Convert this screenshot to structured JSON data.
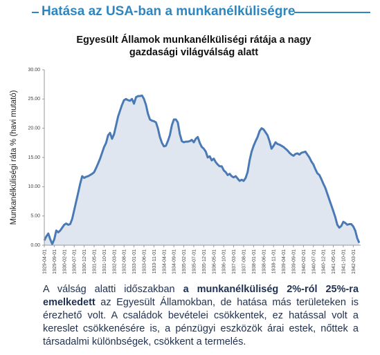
{
  "header": {
    "title": "Hatása az USA-ban a munkanélküliségre"
  },
  "chart_data": {
    "type": "area",
    "title": "Egyesült Államok munkanélküliségi rátája a nagy gazdasági világválság alatt",
    "y_label": "Munkanélküliségi ráta % (havi mutató)",
    "color": "#4a7ab5",
    "fill": "#dfe6ef",
    "categories": [
      "1929-04-01",
      null,
      null,
      null,
      null,
      "1929-09-01",
      null,
      null,
      null,
      null,
      "1930-02-01",
      null,
      null,
      null,
      null,
      "1930-07-01",
      null,
      null,
      null,
      null,
      "1930-12-01",
      null,
      null,
      null,
      null,
      "1931-05-01",
      null,
      null,
      null,
      null,
      "1931-10-01",
      null,
      null,
      null,
      null,
      "1932-03-01",
      null,
      null,
      null,
      null,
      "1932-08-01",
      null,
      null,
      null,
      null,
      "1933-01-01",
      null,
      null,
      null,
      null,
      "1933-06-01",
      null,
      null,
      null,
      null,
      "1933-11-01",
      null,
      null,
      null,
      null,
      "1934-04-01",
      null,
      null,
      null,
      null,
      "1934-09-01",
      null,
      null,
      null,
      null,
      "1935-02-01",
      null,
      null,
      null,
      null,
      "1935-07-01",
      null,
      null,
      null,
      null,
      "1935-12-01",
      null,
      null,
      null,
      null,
      "1936-05-01",
      null,
      null,
      null,
      null,
      "1936-10-01",
      null,
      null,
      null,
      null,
      "1937-03-01",
      null,
      null,
      null,
      null,
      "1937-08-01",
      null,
      null,
      null,
      null,
      "1938-01-01",
      null,
      null,
      null,
      null,
      "1938-06-01",
      null,
      null,
      null,
      null,
      "1938-11-01",
      null,
      null,
      null,
      null,
      "1939-04-01",
      null,
      null,
      null,
      null,
      "1939-09-01",
      null,
      null,
      null,
      null,
      "1940-02-01",
      null,
      null,
      null,
      null,
      "1940-07-01",
      null,
      null,
      null,
      null,
      "1940-12-01",
      null,
      null,
      null,
      null,
      "1941-05-01",
      null,
      null,
      null,
      null,
      "1941-10-01",
      null,
      null,
      null,
      null,
      "1942-03-01",
      null,
      null,
      null
    ],
    "values": [
      0.8,
      1.5,
      2.0,
      1.0,
      0.2,
      1.0,
      2.5,
      2.2,
      2.5,
      3.0,
      3.5,
      3.7,
      3.5,
      3.6,
      4.5,
      6.0,
      7.5,
      9.0,
      10.5,
      11.8,
      11.5,
      11.7,
      11.8,
      12.0,
      12.2,
      12.5,
      13.2,
      14.0,
      14.8,
      15.8,
      16.8,
      17.5,
      18.8,
      19.2,
      18.2,
      19.0,
      20.5,
      22.0,
      23.0,
      24.0,
      24.8,
      25.0,
      24.8,
      24.7,
      25.0,
      24.2,
      25.3,
      25.5,
      25.5,
      25.6,
      25.0,
      24.0,
      22.5,
      21.5,
      21.3,
      21.2,
      21.0,
      20.0,
      18.5,
      17.5,
      16.9,
      17.0,
      17.8,
      18.8,
      20.5,
      21.5,
      21.5,
      21.0,
      19.0,
      17.8,
      17.6,
      17.7,
      17.7,
      17.8,
      18.0,
      17.6,
      18.2,
      18.5,
      17.5,
      16.8,
      16.5,
      16.0,
      15.0,
      15.2,
      14.5,
      14.8,
      14.2,
      13.8,
      13.5,
      13.5,
      12.8,
      12.5,
      12.0,
      12.2,
      11.8,
      11.6,
      11.8,
      11.4,
      11.0,
      11.2,
      11.0,
      11.5,
      12.5,
      14.5,
      16.0,
      17.0,
      17.8,
      18.5,
      19.5,
      20.0,
      19.8,
      19.3,
      18.8,
      17.8,
      16.5,
      17.0,
      17.6,
      17.3,
      17.2,
      17.0,
      16.8,
      16.5,
      16.2,
      15.8,
      15.5,
      15.3,
      15.6,
      15.7,
      15.5,
      15.8,
      15.9,
      16.0,
      15.5,
      15.0,
      14.3,
      13.8,
      13.0,
      12.3,
      12.0,
      11.3,
      10.5,
      9.8,
      8.8,
      7.8,
      6.8,
      5.8,
      4.8,
      3.5,
      3.0,
      3.3,
      4.0,
      3.8,
      3.5,
      3.6,
      3.6,
      3.2,
      2.5,
      1.2,
      0.4
    ],
    "ylim": [
      0,
      30
    ],
    "yticks": [
      {
        "value": 0,
        "label": "0.00"
      },
      {
        "value": 5,
        "label": "5.00"
      },
      {
        "value": 10,
        "label": "10.00"
      },
      {
        "value": 15,
        "label": "15.00"
      },
      {
        "value": 20,
        "label": "20.00"
      },
      {
        "value": 25,
        "label": "25.00"
      },
      {
        "value": 30,
        "label": "30.00"
      }
    ]
  },
  "text": [
    "A válság alatti időszakban ",
    "a munkanélküliség 2%-ról 25%-ra emelkedett",
    " az Egyesült Államokban, de hatása más területeken is érezhető volt. A családok bevételei csökkentek, ez hatással volt a kereslet csökkenésére is, a pénzügyi eszközök árai estek, nőttek a társadalmi különbségek, csökkent a termelés."
  ]
}
